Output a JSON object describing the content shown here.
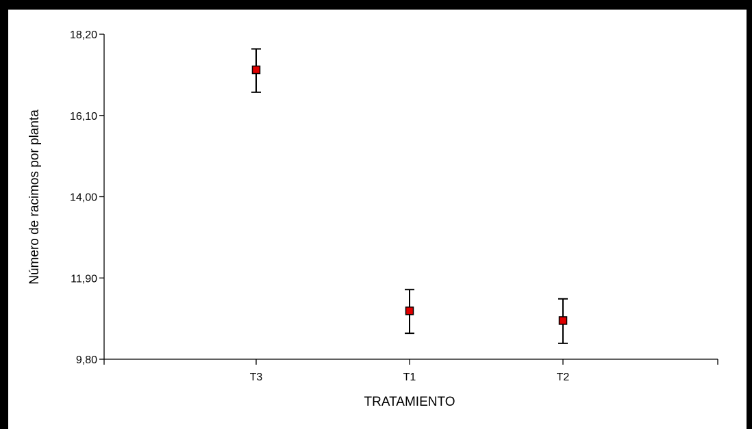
{
  "chart_data": {
    "type": "scatter",
    "title": "",
    "xlabel": "TRATAMIENTO",
    "ylabel": "Número de racimos por planta",
    "categories": [
      "T3",
      "T1",
      "T2"
    ],
    "series": [
      {
        "values": [
          17.28,
          11.05,
          10.8
        ],
        "error_low": [
          16.7,
          10.47,
          10.21
        ],
        "error_high": [
          17.82,
          11.6,
          11.36
        ]
      }
    ],
    "ylim": [
      9.8,
      18.2
    ],
    "yticks": [
      "9,80",
      "11,90",
      "14,00",
      "16,10",
      "18,20"
    ],
    "ytick_values": [
      9.8,
      11.9,
      14.0,
      16.1,
      18.2
    ],
    "marker_color": "#e00000",
    "grid": false,
    "legend": "none"
  }
}
